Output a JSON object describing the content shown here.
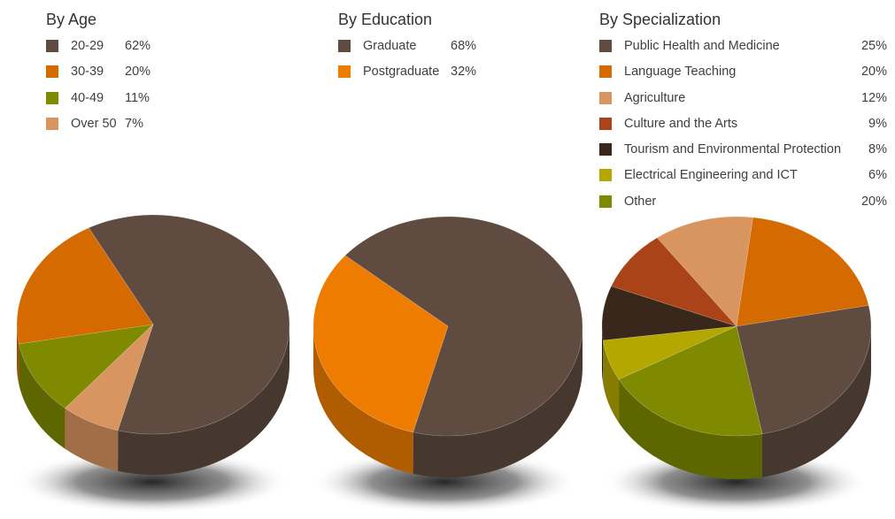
{
  "chart_data": [
    {
      "type": "pie",
      "title": "By Age",
      "categories": [
        "20-29",
        "30-39",
        "40-49",
        "Over 50"
      ],
      "values": [
        62,
        20,
        11,
        7
      ],
      "value_labels": [
        "62%",
        "20%",
        "11%",
        "7%"
      ],
      "colors": [
        "#5f4b3f",
        "#d46a00",
        "#7f8a00",
        "#d99560"
      ]
    },
    {
      "type": "pie",
      "title": "By Education",
      "categories": [
        "Graduate",
        "Postgraduate"
      ],
      "values": [
        68,
        32
      ],
      "value_labels": [
        "68%",
        "32%"
      ],
      "colors": [
        "#5f4b3f",
        "#ee7c00"
      ]
    },
    {
      "type": "pie",
      "title": "By Specialization",
      "categories": [
        "Public Health and Medicine",
        "Language Teaching",
        "Agriculture",
        "Culture and the Arts",
        "Tourism and Environmental Protection",
        "Electrical Engineering and ICT",
        "Other"
      ],
      "values": [
        25,
        20,
        12,
        9,
        8,
        6,
        20
      ],
      "value_labels": [
        "25%",
        "20%",
        "12%",
        "9%",
        "8%",
        "6%",
        "20%"
      ],
      "colors": [
        "#5f4b3f",
        "#d46a00",
        "#d99560",
        "#ab4318",
        "#3a271b",
        "#b4a800",
        "#7f8a00"
      ]
    }
  ]
}
